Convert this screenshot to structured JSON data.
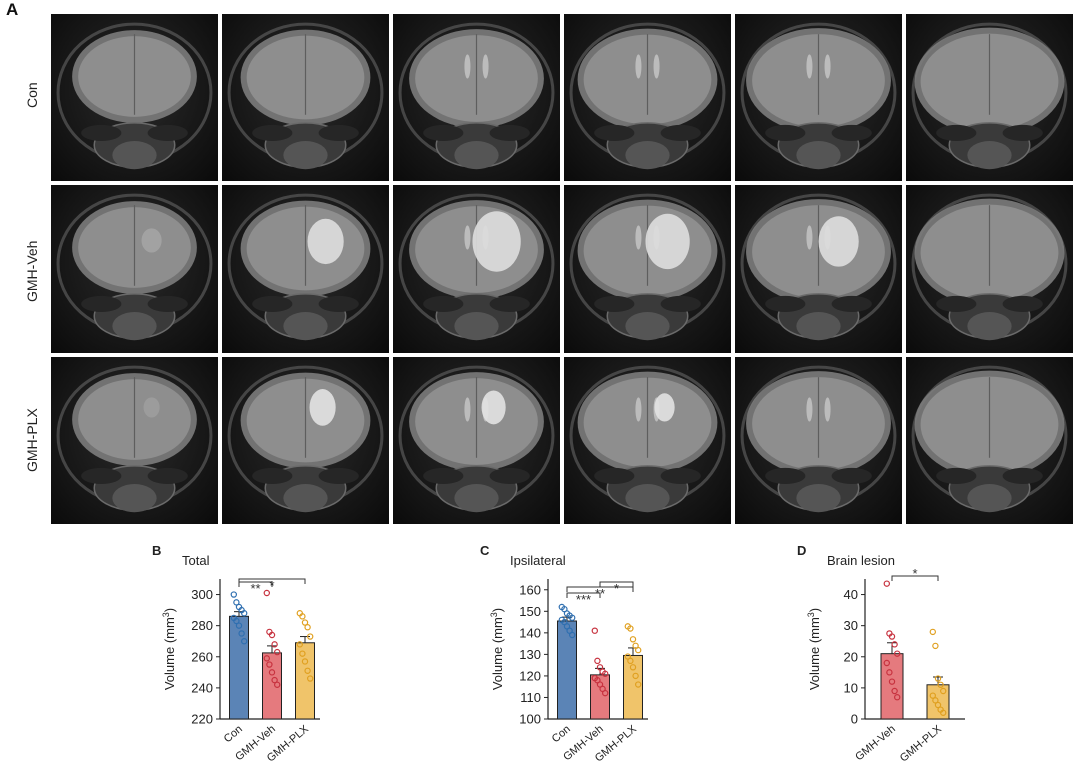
{
  "figure": {
    "panel_a_letter": "A",
    "rows": [
      {
        "label": "Con",
        "lesion": "none"
      },
      {
        "label": "GMH-Veh",
        "lesion": "large"
      },
      {
        "label": "GMH-PLX",
        "lesion": "medium"
      }
    ],
    "slices_per_row": 6
  },
  "colors": {
    "con": "#5b84b6",
    "veh": "#e57a7e",
    "plx": "#f0c46a",
    "con_dot": "#2f6fb0",
    "veh_dot": "#c7323f",
    "plx_dot": "#e0a020"
  },
  "chart_data": [
    {
      "panel": "B",
      "type": "bar",
      "title": "Total",
      "ylabel": "Volume (mm",
      "ylabel_sup": "3",
      "ylabel_close": ")",
      "ylim": [
        220,
        310
      ],
      "yticks": [
        220,
        240,
        260,
        280,
        300
      ],
      "categories": [
        "Con",
        "GMH-Veh",
        "GMH-PLX"
      ],
      "values": [
        286,
        262.5,
        269
      ],
      "errors": [
        3,
        4.5,
        4
      ],
      "points": [
        [
          300,
          295,
          292,
          290,
          288,
          285,
          283,
          280,
          275,
          270
        ],
        [
          301,
          276,
          274,
          268,
          263,
          259,
          255,
          250,
          245,
          242
        ],
        [
          288,
          286,
          282,
          279,
          273,
          268,
          262,
          257,
          251,
          246
        ]
      ],
      "significance": [
        {
          "from": 0,
          "to": 1,
          "label": "**"
        },
        {
          "from": 0,
          "to": 2,
          "label": "*"
        }
      ]
    },
    {
      "panel": "C",
      "type": "bar",
      "title": "Ipsilateral",
      "ylabel": "Volume (mm",
      "ylabel_sup": "3",
      "ylabel_close": ")",
      "ylim": [
        100,
        165
      ],
      "yticks": [
        100,
        110,
        120,
        130,
        140,
        150,
        160
      ],
      "categories": [
        "Con",
        "GMH-Veh",
        "GMH-PLX"
      ],
      "values": [
        145.5,
        120.5,
        129.5
      ],
      "errors": [
        1.8,
        3,
        3.5
      ],
      "points": [
        [
          152,
          151,
          149,
          148,
          147,
          146,
          145,
          143,
          141,
          139
        ],
        [
          141,
          127,
          124,
          122,
          121,
          119,
          118,
          116,
          114,
          112
        ],
        [
          143,
          142,
          137,
          134,
          132,
          129,
          127,
          124,
          120,
          116
        ]
      ],
      "significance": [
        {
          "from": 0,
          "to": 1,
          "label": "***"
        },
        {
          "from": 0,
          "to": 2,
          "label": "**"
        },
        {
          "from": 1,
          "to": 2,
          "label": "*"
        }
      ]
    },
    {
      "panel": "D",
      "type": "bar",
      "title": "Brain lesion",
      "ylabel": "Volume (mm",
      "ylabel_sup": "3",
      "ylabel_close": ")",
      "ylim": [
        0,
        45
      ],
      "yticks": [
        0,
        10,
        20,
        30,
        40
      ],
      "categories": [
        "GMH-Veh",
        "GMH-PLX"
      ],
      "values": [
        21,
        11
      ],
      "errors": [
        3.5,
        2.5
      ],
      "points": [
        [
          43.5,
          27.5,
          26.5,
          24,
          21,
          18,
          15,
          12,
          9,
          7
        ],
        [
          28,
          23.5,
          13,
          11,
          9,
          7.5,
          6,
          4.5,
          3,
          2
        ]
      ],
      "significance": [
        {
          "from": 0,
          "to": 1,
          "label": "*"
        }
      ]
    }
  ]
}
